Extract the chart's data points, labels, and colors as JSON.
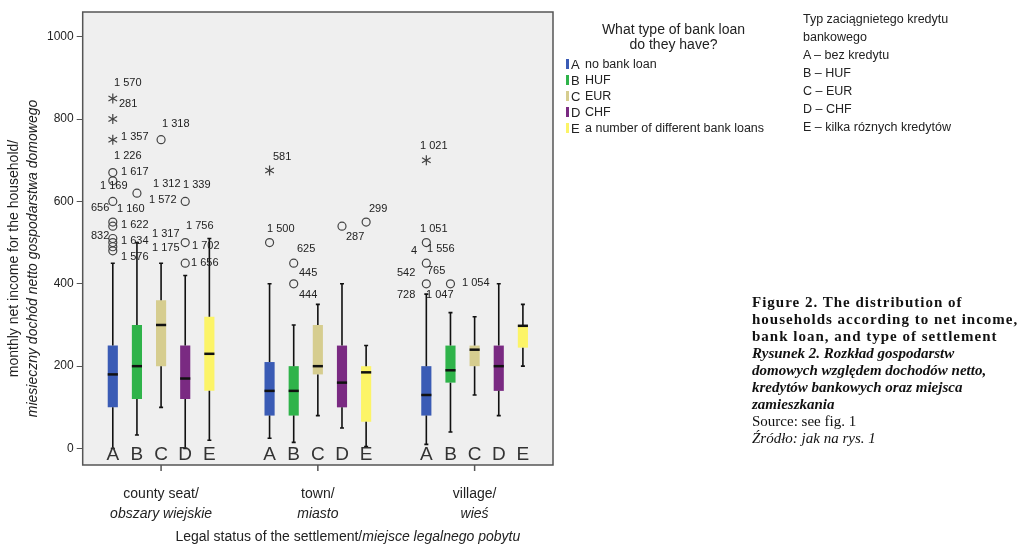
{
  "chart_data": {
    "type": "box",
    "xlabel": "Legal status of the settlement/miejsce legalnego pobytu",
    "ylabel": "monthly net income for the household/\nmiesieczny dochód netto gospodarstwa domowego",
    "legend_title": "What type of bank loan\ndo they have?",
    "legend": "right",
    "ylim": [
      -40,
      1060
    ],
    "yticks": [
      0,
      200,
      400,
      600,
      800,
      1000
    ],
    "categories": [
      "county seat/\nobszary wiejskie",
      "town/\nmiasto",
      "village/\nwieś"
    ],
    "series": [
      {
        "name": "A",
        "color": "#3a5bb5",
        "boxes": [
          {
            "low": 0,
            "q1": 100,
            "median": 180,
            "q3": 250,
            "high": 450,
            "outliers": [
              850,
              800,
              750,
              670,
              650,
              600,
              550,
              540,
              510,
              500,
              490,
              480
            ]
          },
          {
            "low": 25,
            "q1": 80,
            "median": 140,
            "q3": 210,
            "high": 400,
            "outliers": [
              675,
              500
            ]
          },
          {
            "low": 10,
            "q1": 80,
            "median": 130,
            "q3": 200,
            "high": 375,
            "outliers": [
              700,
              500,
              450,
              400
            ]
          }
        ]
      },
      {
        "name": "B",
        "color": "#2fb34a",
        "boxes": [
          {
            "low": 33,
            "q1": 120,
            "median": 200,
            "q3": 300,
            "high": 500,
            "outliers": [
              620
            ]
          },
          {
            "low": 15,
            "q1": 80,
            "median": 140,
            "q3": 200,
            "high": 300,
            "outliers": [
              450,
              400
            ]
          },
          {
            "low": 40,
            "q1": 160,
            "median": 190,
            "q3": 250,
            "high": 330,
            "outliers": [
              400
            ]
          }
        ]
      },
      {
        "name": "C",
        "color": "#d6cd8f",
        "boxes": [
          {
            "low": 100,
            "q1": 200,
            "median": 300,
            "q3": 360,
            "high": 450,
            "outliers": [
              750
            ]
          },
          {
            "low": 80,
            "q1": 180,
            "median": 200,
            "q3": 300,
            "high": 350
          },
          {
            "low": 130,
            "q1": 200,
            "median": 240,
            "q3": 250,
            "high": 320
          }
        ]
      },
      {
        "name": "D",
        "color": "#7a2a82",
        "boxes": [
          {
            "low": 0,
            "q1": 120,
            "median": 170,
            "q3": 250,
            "high": 420,
            "outliers": [
              600,
              500,
              450
            ]
          },
          {
            "low": 50,
            "q1": 100,
            "median": 160,
            "q3": 250,
            "high": 400,
            "outliers": [
              540
            ]
          },
          {
            "low": 80,
            "q1": 140,
            "median": 200,
            "q3": 250,
            "high": 400
          }
        ]
      },
      {
        "name": "E",
        "color": "#fcf467",
        "boxes": [
          {
            "low": 20,
            "q1": 140,
            "median": 230,
            "q3": 320,
            "high": 510
          },
          {
            "low": 5,
            "q1": 65,
            "median": 185,
            "q3": 200,
            "high": 250,
            "outliers": [
              550
            ]
          },
          {
            "low": 200,
            "q1": 245,
            "median": 298,
            "q3": 300,
            "high": 350
          }
        ]
      }
    ],
    "annotations": [
      "no bank loan",
      "HUF",
      "EUR",
      "CHF",
      "a number of different bank loans",
      "Typ zaciągnietego kredytu\nbankowego\nA – bez kredytu\nB – HUF\nC – EUR\nD – CHF\nE – kilka róznych kredytów",
      "Figure 2. The distribution of households according to net income, bank loan, and type of settlement",
      "Rysunek 2. Rozkład gospodarstw domowych względem dochodów netto, kredytów bankowych oraz miejsca zamieszkania",
      "Source: see fig. 1",
      "Źródło: jak na rys. 1",
      "1 570",
      "281",
      "1 357",
      "1 226",
      "1 617",
      "1 169",
      "656",
      "1 160",
      "1 622",
      "832",
      "1 634",
      "1 576",
      "1 312",
      "1 318",
      "1 339",
      "1 572",
      "1 756",
      "1 317",
      "1 702",
      "1 175",
      "1 656",
      "581",
      "1 500",
      "625",
      "445",
      "444",
      "287",
      "299",
      "1 021",
      "1 051",
      "4",
      "1 556",
      "542",
      "765",
      "728",
      "1 047",
      "1 054"
    ]
  }
}
